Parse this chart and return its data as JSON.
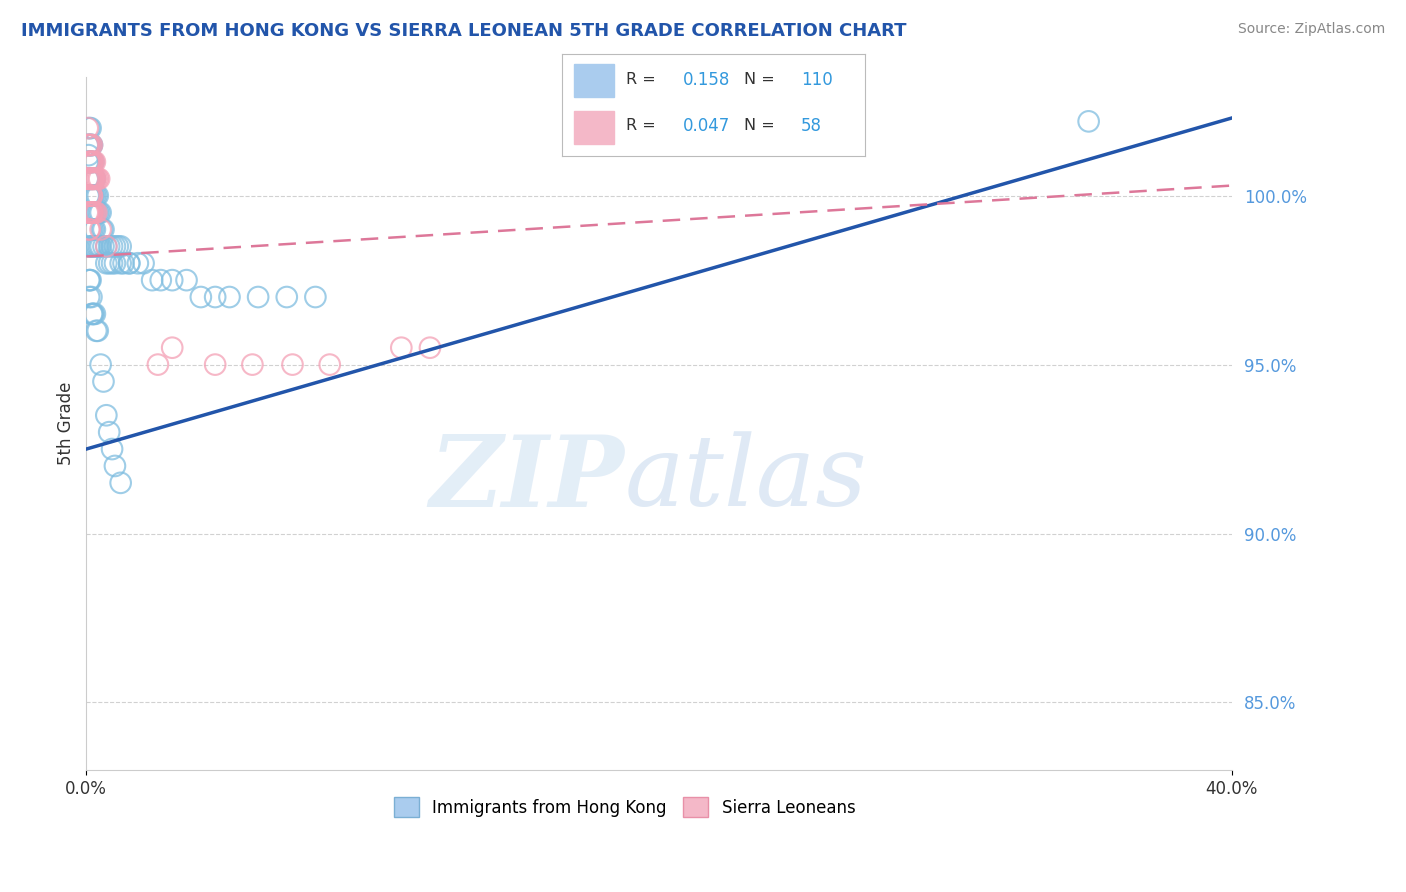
{
  "title": "IMMIGRANTS FROM HONG KONG VS SIERRA LEONEAN 5TH GRADE CORRELATION CHART",
  "source": "Source: ZipAtlas.com",
  "ylabel": "5th Grade",
  "r_blue": 0.158,
  "n_blue": 110,
  "r_pink": 0.047,
  "n_pink": 58,
  "xlim": [
    0.0,
    40.0
  ],
  "ylim": [
    83.0,
    103.5
  ],
  "ytick_positions": [
    100.0,
    95.0,
    90.0,
    85.0
  ],
  "xtick_vals": [
    0.0,
    40.0
  ],
  "blue_line": [
    0.0,
    92.5,
    40.0,
    102.3
  ],
  "pink_line": [
    0.0,
    98.2,
    40.0,
    100.3
  ],
  "blue_color": "#7fbde0",
  "pink_color": "#f4a0b5",
  "blue_line_color": "#2255aa",
  "pink_line_color": "#dd7799",
  "grid_color": "#cccccc",
  "background": "#ffffff",
  "blue_scatter_x": [
    0.05,
    0.05,
    0.05,
    0.08,
    0.08,
    0.08,
    0.08,
    0.08,
    0.1,
    0.1,
    0.1,
    0.1,
    0.1,
    0.12,
    0.12,
    0.12,
    0.15,
    0.15,
    0.15,
    0.15,
    0.15,
    0.15,
    0.18,
    0.18,
    0.18,
    0.18,
    0.2,
    0.2,
    0.2,
    0.2,
    0.2,
    0.22,
    0.22,
    0.25,
    0.25,
    0.25,
    0.25,
    0.3,
    0.3,
    0.3,
    0.35,
    0.35,
    0.4,
    0.4,
    0.45,
    0.5,
    0.55,
    0.6,
    0.7,
    0.8,
    0.9,
    1.0,
    1.1,
    1.2,
    1.3,
    1.5,
    1.8,
    2.0,
    2.3,
    2.6,
    3.0,
    3.5,
    4.0,
    4.5,
    5.0,
    6.0,
    7.0,
    8.0,
    0.12,
    0.15,
    0.18,
    0.2,
    0.22,
    0.25,
    0.28,
    0.3,
    0.35,
    0.4,
    0.45,
    0.5,
    0.6,
    0.7,
    0.8,
    0.9,
    1.0,
    1.2,
    1.5,
    0.1,
    0.1,
    0.12,
    0.15,
    0.18,
    0.2,
    0.22,
    0.25,
    0.3,
    0.35,
    0.4,
    0.5,
    0.6,
    0.7,
    0.8,
    0.9,
    1.0,
    1.2,
    35.0
  ],
  "blue_scatter_y": [
    100.5,
    101.0,
    101.5,
    100.0,
    100.5,
    101.0,
    101.2,
    101.5,
    100.0,
    100.5,
    101.0,
    101.5,
    102.0,
    100.0,
    100.5,
    101.0,
    99.5,
    100.0,
    100.5,
    101.0,
    101.5,
    102.0,
    100.0,
    100.5,
    101.0,
    101.5,
    99.5,
    100.0,
    100.5,
    101.0,
    101.5,
    99.5,
    100.0,
    99.5,
    100.0,
    100.5,
    101.0,
    99.5,
    100.0,
    100.5,
    99.5,
    100.0,
    99.5,
    100.0,
    99.5,
    99.5,
    99.0,
    99.0,
    98.5,
    98.5,
    98.5,
    98.5,
    98.5,
    98.5,
    98.0,
    98.0,
    98.0,
    98.0,
    97.5,
    97.5,
    97.5,
    97.5,
    97.0,
    97.0,
    97.0,
    97.0,
    97.0,
    97.0,
    98.5,
    99.0,
    98.5,
    99.0,
    98.5,
    99.0,
    98.5,
    99.0,
    98.5,
    98.5,
    98.5,
    98.5,
    98.5,
    98.0,
    98.0,
    98.0,
    98.0,
    98.0,
    98.0,
    97.5,
    97.0,
    97.5,
    97.5,
    97.0,
    96.5,
    96.5,
    96.5,
    96.5,
    96.0,
    96.0,
    95.0,
    94.5,
    93.5,
    93.0,
    92.5,
    92.0,
    91.5,
    102.2
  ],
  "pink_scatter_x": [
    0.05,
    0.05,
    0.08,
    0.08,
    0.1,
    0.1,
    0.12,
    0.12,
    0.15,
    0.15,
    0.15,
    0.18,
    0.18,
    0.2,
    0.2,
    0.2,
    0.22,
    0.22,
    0.25,
    0.25,
    0.3,
    0.3,
    0.35,
    0.4,
    0.45,
    0.05,
    0.08,
    0.1,
    0.12,
    0.15,
    0.18,
    0.2,
    0.22,
    0.25,
    0.3,
    0.1,
    0.12,
    0.15,
    0.18,
    0.2,
    0.22,
    0.25,
    0.3,
    0.35,
    0.5,
    0.7,
    2.5,
    3.0,
    4.5,
    5.8,
    7.2,
    8.5,
    11.0,
    12.0,
    0.05,
    0.08,
    0.1,
    0.12
  ],
  "pink_scatter_y": [
    101.5,
    102.0,
    101.0,
    101.5,
    101.0,
    101.5,
    100.5,
    101.0,
    100.5,
    101.0,
    101.5,
    100.5,
    101.0,
    100.5,
    101.0,
    101.5,
    100.5,
    101.0,
    100.5,
    101.0,
    100.5,
    101.0,
    100.5,
    100.5,
    100.5,
    100.5,
    100.5,
    100.0,
    100.0,
    100.5,
    100.0,
    100.0,
    100.5,
    100.5,
    100.5,
    99.5,
    99.5,
    99.5,
    99.5,
    99.5,
    99.5,
    99.5,
    99.5,
    99.5,
    99.0,
    98.5,
    95.0,
    95.5,
    95.0,
    95.0,
    95.0,
    95.0,
    95.5,
    95.5,
    99.5,
    99.5,
    99.0,
    99.0
  ]
}
